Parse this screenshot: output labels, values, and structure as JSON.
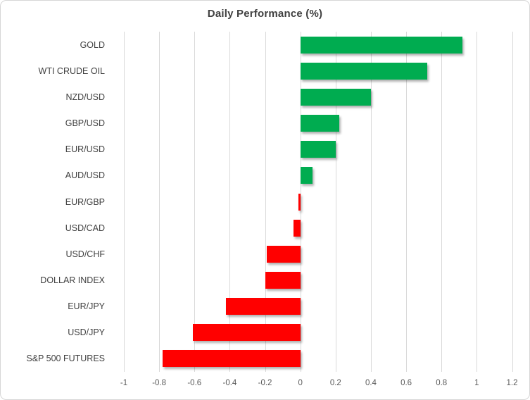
{
  "chart_data": {
    "type": "bar",
    "orientation": "horizontal",
    "title": "Daily Performance (%)",
    "categories": [
      "GOLD",
      "WTI CRUDE OIL",
      "NZD/USD",
      "GBP/USD",
      "EUR/USD",
      "AUD/USD",
      "EUR/GBP",
      "USD/CAD",
      "USD/CHF",
      "DOLLAR INDEX",
      "EUR/JPY",
      "USD/JPY",
      "S&P 500 FUTURES"
    ],
    "values": [
      0.92,
      0.72,
      0.4,
      0.22,
      0.2,
      0.07,
      -0.01,
      -0.04,
      -0.19,
      -0.2,
      -0.42,
      -0.61,
      -0.78
    ],
    "xlabel": "",
    "ylabel": "",
    "xlim": [
      -1,
      1.2
    ],
    "xtick_labels": [
      "-1",
      "-0.8",
      "-0.6",
      "-0.4",
      "-0.2",
      "0",
      "0.2",
      "0.4",
      "0.6",
      "0.8",
      "1",
      "1.2"
    ],
    "xtick_values": [
      -1,
      -0.8,
      -0.6,
      -0.4,
      -0.2,
      0,
      0.2,
      0.4,
      0.6,
      0.8,
      1,
      1.2
    ],
    "grid": true,
    "legend": "none",
    "colors": {
      "positive_bar": "#00AC50",
      "negative_bar": "#FF0000",
      "gridline": "#D9D9D9",
      "title_text": "#3F3F3F",
      "category_text": "#404040",
      "tick_text": "#595959"
    }
  }
}
